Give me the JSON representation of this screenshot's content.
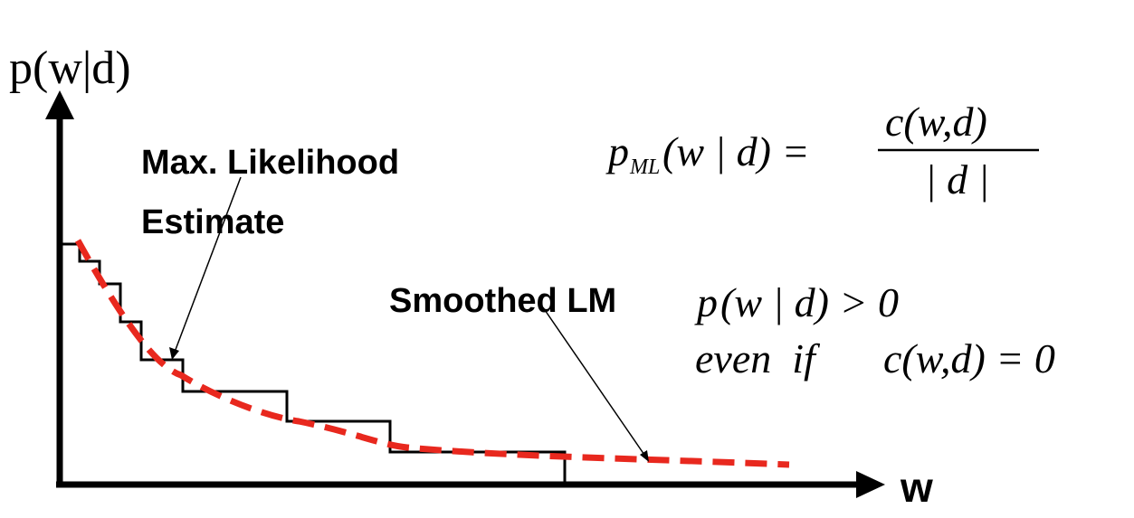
{
  "axes": {
    "y_label": "p(w|d)",
    "x_label": "w"
  },
  "labels": {
    "ml_estimate_line1": "Max. Likelihood",
    "ml_estimate_line2": "Estimate",
    "smoothed_lm": "Smoothed LM"
  },
  "formulas": {
    "ml": {
      "p": "p",
      "sub": "ML",
      "args": "(w | d) =",
      "numerator": "c(w,d)",
      "denominator": "| d |"
    },
    "positive": {
      "p": "p",
      "rest": "(w | d) > 0"
    },
    "even_if": {
      "lead": "even  if",
      "rest": "c(w,d) = 0"
    }
  },
  "colors": {
    "axis": "#000000",
    "ml_step": "#000000",
    "smoothed": "#e8281e"
  }
}
